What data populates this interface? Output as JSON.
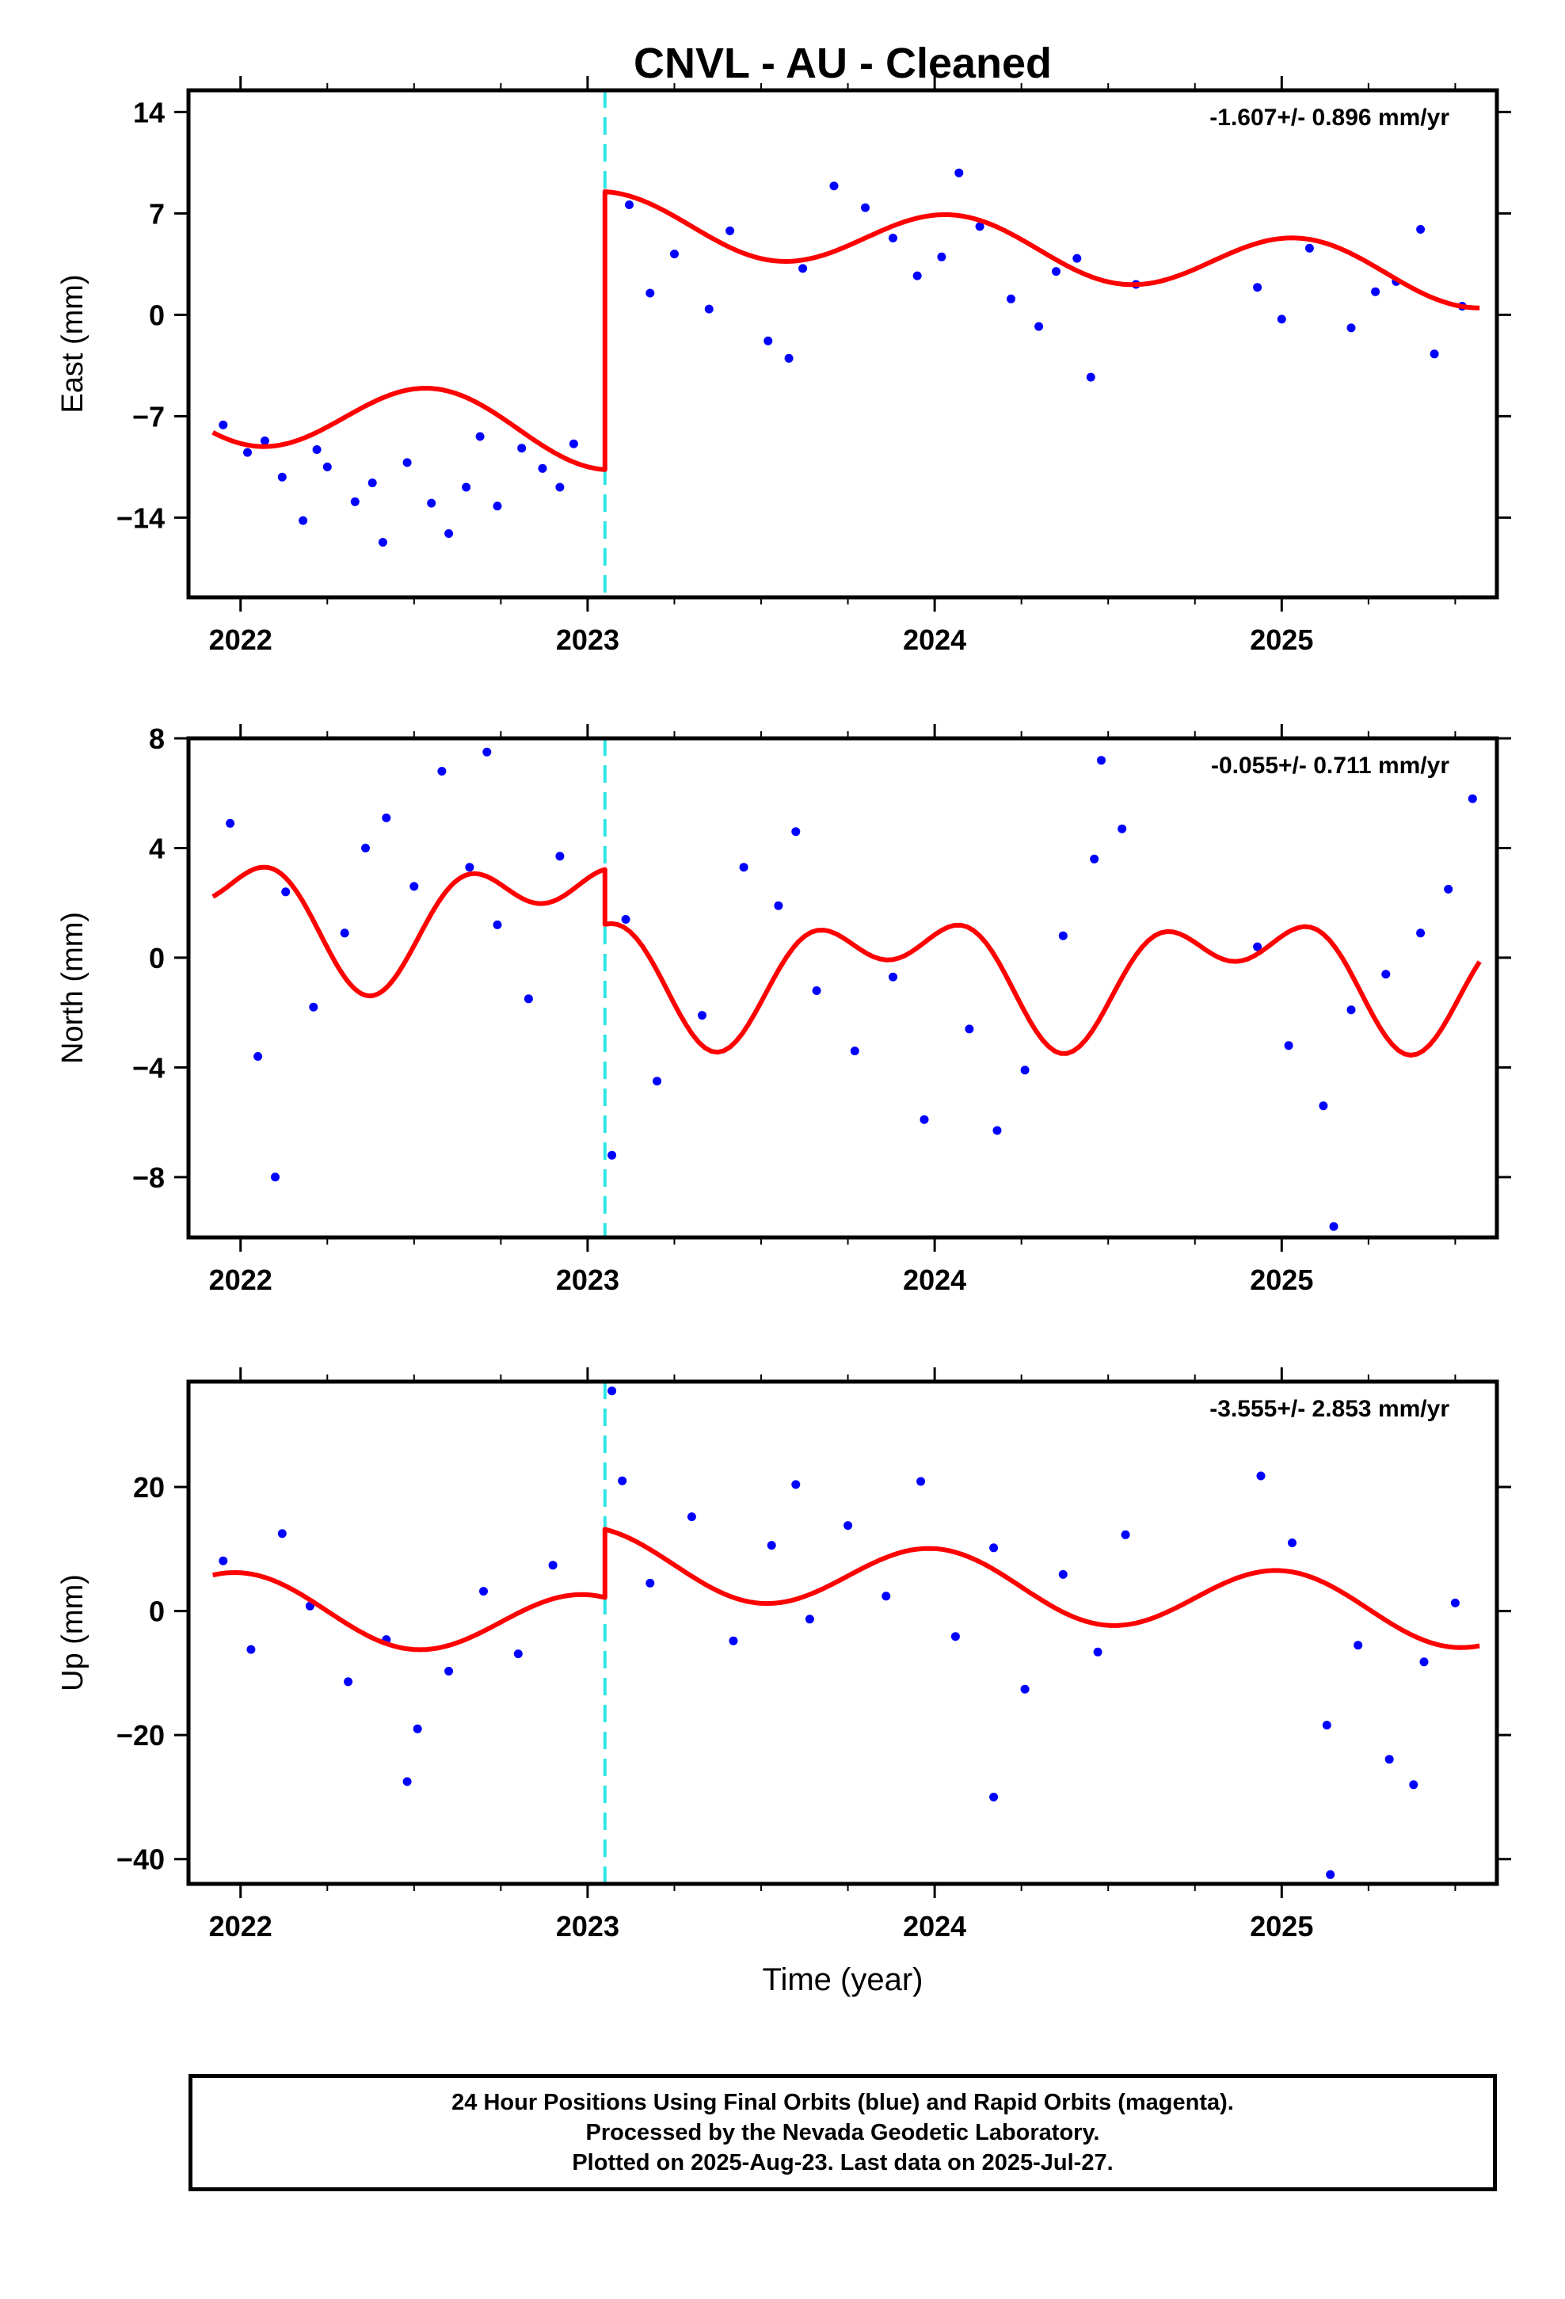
{
  "title": "CNVL  - AU - Cleaned",
  "footer": {
    "line1": "24 Hour Positions Using Final Orbits (blue) and Rapid Orbits (magenta).",
    "line2": "Processed by the Nevada Geodetic Laboratory.",
    "line3": "Plotted on 2025-Aug-23. Last data on 2025-Jul-27."
  },
  "colors": {
    "final_orbits": "#0000ff",
    "model_fit": "#ff0000",
    "break_line": "#2ee6e6"
  },
  "chart_data": [
    {
      "type": "scatter",
      "component": "East",
      "ylabel": "East (mm)",
      "xlabel": "",
      "rate_label": "-1.607+/- 0.896 mm/yr",
      "xlim": [
        2021.85,
        2025.62
      ],
      "ylim": [
        -19.5,
        15.5
      ],
      "yticks": [
        14,
        7,
        0,
        -7,
        -14
      ],
      "ytick_labels": [
        "14",
        "7",
        "0",
        "−7",
        "−14"
      ],
      "xticks": [
        2022,
        2023,
        2024,
        2025
      ],
      "xtick_labels": [
        "2022",
        "2023",
        "2024",
        "2025"
      ],
      "break_epoch": 2023.05,
      "model": {
        "segments": [
          {
            "start": 2021.92,
            "end": 2023.05,
            "offset": -7.4,
            "slope": -1.607,
            "ref": 2022.5,
            "a1": -2.4,
            "phase": 0.05
          },
          {
            "start": 2023.05,
            "end": 2025.57,
            "offset": 4.5,
            "slope": -1.607,
            "ref": 2024.3,
            "a1": 2.0,
            "phase": 0.05
          }
        ]
      },
      "points": [
        {
          "x": 2022.65,
          "y": -11.9
        },
        {
          "x": 2022.02,
          "y": -9.5
        },
        {
          "x": 2022.81,
          "y": -9.2
        },
        {
          "x": 2022.12,
          "y": -11.2
        },
        {
          "x": 2022.41,
          "y": -15.7
        },
        {
          "x": 2022.55,
          "y": -13.0
        },
        {
          "x": 2022.92,
          "y": -11.9
        },
        {
          "x": 2021.95,
          "y": -7.6
        },
        {
          "x": 2022.25,
          "y": -10.5
        },
        {
          "x": 2022.74,
          "y": -13.2
        },
        {
          "x": 2022.33,
          "y": -12.9
        },
        {
          "x": 2022.48,
          "y": -10.2
        },
        {
          "x": 2022.96,
          "y": -8.9
        },
        {
          "x": 2022.18,
          "y": -14.2
        },
        {
          "x": 2022.6,
          "y": -15.1
        },
        {
          "x": 2022.07,
          "y": -8.7
        },
        {
          "x": 2022.87,
          "y": -10.6
        },
        {
          "x": 2022.38,
          "y": -11.6
        },
        {
          "x": 2022.69,
          "y": -8.4
        },
        {
          "x": 2022.22,
          "y": -9.3
        },
        {
          "x": 2023.25,
          "y": 4.2
        },
        {
          "x": 2023.52,
          "y": -1.8
        },
        {
          "x": 2023.71,
          "y": 8.9
        },
        {
          "x": 2023.88,
          "y": 5.3
        },
        {
          "x": 2024.07,
          "y": 9.8
        },
        {
          "x": 2024.22,
          "y": 1.1
        },
        {
          "x": 2024.41,
          "y": 3.9
        },
        {
          "x": 2024.45,
          "y": -4.3
        },
        {
          "x": 2024.58,
          "y": 2.1
        },
        {
          "x": 2023.12,
          "y": 7.6
        },
        {
          "x": 2023.35,
          "y": 0.4
        },
        {
          "x": 2023.62,
          "y": 3.2
        },
        {
          "x": 2023.95,
          "y": 2.7
        },
        {
          "x": 2024.13,
          "y": 6.1
        },
        {
          "x": 2024.3,
          "y": -0.8
        },
        {
          "x": 2024.93,
          "y": 1.9
        },
        {
          "x": 2025.08,
          "y": 4.6
        },
        {
          "x": 2025.2,
          "y": -0.9
        },
        {
          "x": 2025.33,
          "y": 2.3
        },
        {
          "x": 2025.44,
          "y": -2.7
        },
        {
          "x": 2025.52,
          "y": 0.6
        },
        {
          "x": 2023.41,
          "y": 5.8
        },
        {
          "x": 2023.8,
          "y": 7.4
        },
        {
          "x": 2024.35,
          "y": 3.0
        },
        {
          "x": 2025.0,
          "y": -0.3
        },
        {
          "x": 2025.27,
          "y": 1.6
        },
        {
          "x": 2023.18,
          "y": 1.5
        },
        {
          "x": 2024.02,
          "y": 4.0
        },
        {
          "x": 2025.4,
          "y": 5.9
        },
        {
          "x": 2023.58,
          "y": -3.0
        }
      ]
    },
    {
      "type": "scatter",
      "component": "North",
      "ylabel": "North (mm)",
      "xlabel": "",
      "rate_label": "-0.055+/- 0.711 mm/yr",
      "xlim": [
        2021.85,
        2025.62
      ],
      "ylim": [
        -10.2,
        8.0
      ],
      "yticks": [
        8,
        4,
        0,
        -4,
        -8
      ],
      "ytick_labels": [
        "8",
        "4",
        "0",
        "−4",
        "−8"
      ],
      "xticks": [
        2022,
        2023,
        2024,
        2025
      ],
      "xtick_labels": [
        "2022",
        "2023",
        "2024",
        "2025"
      ],
      "break_epoch": 2023.05,
      "model": {
        "segments": [
          {
            "start": 2021.92,
            "end": 2023.05,
            "offset": 1.6,
            "slope": -0.055,
            "ref": 2022.5,
            "a1": -1.7,
            "phase": 0.38,
            "a2": 1.3,
            "phase2": 0.12
          },
          {
            "start": 2023.05,
            "end": 2025.57,
            "offset": -0.5,
            "slope": -0.055,
            "ref": 2024.3,
            "a1": -1.7,
            "phase": 0.38,
            "a2": 1.3,
            "phase2": 0.12
          }
        ]
      },
      "points": [
        {
          "x": 2021.97,
          "y": 4.9
        },
        {
          "x": 2022.05,
          "y": -3.6
        },
        {
          "x": 2022.13,
          "y": 2.4
        },
        {
          "x": 2022.21,
          "y": -1.8
        },
        {
          "x": 2022.3,
          "y": 0.9
        },
        {
          "x": 2022.42,
          "y": 5.1
        },
        {
          "x": 2022.5,
          "y": 2.6
        },
        {
          "x": 2022.58,
          "y": 6.8
        },
        {
          "x": 2022.66,
          "y": 3.3
        },
        {
          "x": 2022.74,
          "y": 1.2
        },
        {
          "x": 2022.83,
          "y": -1.5
        },
        {
          "x": 2022.92,
          "y": 3.7
        },
        {
          "x": 2022.1,
          "y": -8.0
        },
        {
          "x": 2022.36,
          "y": 4.0
        },
        {
          "x": 2022.71,
          "y": 7.5
        },
        {
          "x": 2023.11,
          "y": 1.4
        },
        {
          "x": 2023.2,
          "y": -4.5
        },
        {
          "x": 2023.33,
          "y": -2.1
        },
        {
          "x": 2023.45,
          "y": 3.3
        },
        {
          "x": 2023.55,
          "y": 1.9
        },
        {
          "x": 2023.66,
          "y": -1.2
        },
        {
          "x": 2023.77,
          "y": -3.4
        },
        {
          "x": 2023.88,
          "y": -0.7
        },
        {
          "x": 2023.97,
          "y": -5.9
        },
        {
          "x": 2024.1,
          "y": -2.6
        },
        {
          "x": 2024.18,
          "y": -6.3
        },
        {
          "x": 2024.26,
          "y": -4.1
        },
        {
          "x": 2024.37,
          "y": 0.8
        },
        {
          "x": 2024.46,
          "y": 3.6
        },
        {
          "x": 2024.54,
          "y": 4.7
        },
        {
          "x": 2024.93,
          "y": 0.4
        },
        {
          "x": 2025.02,
          "y": -3.2
        },
        {
          "x": 2025.12,
          "y": -5.4
        },
        {
          "x": 2025.2,
          "y": -1.9
        },
        {
          "x": 2025.3,
          "y": -0.6
        },
        {
          "x": 2025.4,
          "y": 0.9
        },
        {
          "x": 2025.48,
          "y": 2.5
        },
        {
          "x": 2025.55,
          "y": 5.8
        },
        {
          "x": 2023.07,
          "y": -7.2
        },
        {
          "x": 2025.15,
          "y": -9.8
        },
        {
          "x": 2024.48,
          "y": 7.2
        },
        {
          "x": 2023.6,
          "y": 4.6
        }
      ]
    },
    {
      "type": "scatter",
      "component": "Up",
      "ylabel": "Up (mm)",
      "xlabel": "Time (year)",
      "rate_label": "-3.555+/- 2.853 mm/yr",
      "xlim": [
        2021.85,
        2025.62
      ],
      "ylim": [
        -44.0,
        37.0
      ],
      "yticks": [
        20,
        0,
        -20,
        -40
      ],
      "ytick_labels": [
        "20",
        "0",
        "−20",
        "−40"
      ],
      "xticks": [
        2022,
        2023,
        2024,
        2025
      ],
      "xtick_labels": [
        "2022",
        "2023",
        "2024",
        "2025"
      ],
      "break_epoch": 2023.05,
      "model": {
        "segments": [
          {
            "start": 2021.92,
            "end": 2023.05,
            "offset": -0.9,
            "slope": -3.555,
            "ref": 2022.5,
            "a1": 5.3,
            "phase": 0.0
          },
          {
            "start": 2023.05,
            "end": 2025.57,
            "offset": 3.7,
            "slope": -3.555,
            "ref": 2024.3,
            "a1": 5.3,
            "phase": 0.0
          }
        ]
      },
      "points": [
        {
          "x": 2021.95,
          "y": 8.1
        },
        {
          "x": 2022.03,
          "y": -6.2
        },
        {
          "x": 2022.12,
          "y": 12.5
        },
        {
          "x": 2022.2,
          "y": 0.8
        },
        {
          "x": 2022.31,
          "y": -11.4
        },
        {
          "x": 2022.42,
          "y": -4.6
        },
        {
          "x": 2022.51,
          "y": -19.0
        },
        {
          "x": 2022.6,
          "y": -9.7
        },
        {
          "x": 2022.7,
          "y": 3.2
        },
        {
          "x": 2022.8,
          "y": -6.9
        },
        {
          "x": 2022.9,
          "y": 7.4
        },
        {
          "x": 2022.48,
          "y": -27.5
        },
        {
          "x": 2023.1,
          "y": 21.0
        },
        {
          "x": 2023.18,
          "y": 4.5
        },
        {
          "x": 2023.3,
          "y": 15.2
        },
        {
          "x": 2023.42,
          "y": -4.8
        },
        {
          "x": 2023.53,
          "y": 10.6
        },
        {
          "x": 2023.64,
          "y": -1.3
        },
        {
          "x": 2023.75,
          "y": 13.8
        },
        {
          "x": 2023.86,
          "y": 2.4
        },
        {
          "x": 2023.96,
          "y": 20.9
        },
        {
          "x": 2024.06,
          "y": -4.1
        },
        {
          "x": 2024.17,
          "y": 10.2
        },
        {
          "x": 2024.26,
          "y": -12.6
        },
        {
          "x": 2024.37,
          "y": 5.9
        },
        {
          "x": 2024.47,
          "y": -6.6
        },
        {
          "x": 2024.55,
          "y": 12.3
        },
        {
          "x": 2024.94,
          "y": 21.8
        },
        {
          "x": 2025.03,
          "y": 11.0
        },
        {
          "x": 2025.13,
          "y": -18.4
        },
        {
          "x": 2025.22,
          "y": -5.5
        },
        {
          "x": 2025.31,
          "y": -23.9
        },
        {
          "x": 2025.41,
          "y": -8.2
        },
        {
          "x": 2025.5,
          "y": 1.3
        },
        {
          "x": 2025.14,
          "y": -42.5
        },
        {
          "x": 2023.07,
          "y": 35.5
        },
        {
          "x": 2024.17,
          "y": -30.0
        },
        {
          "x": 2023.6,
          "y": 20.4
        },
        {
          "x": 2025.38,
          "y": -28.0
        }
      ]
    }
  ]
}
